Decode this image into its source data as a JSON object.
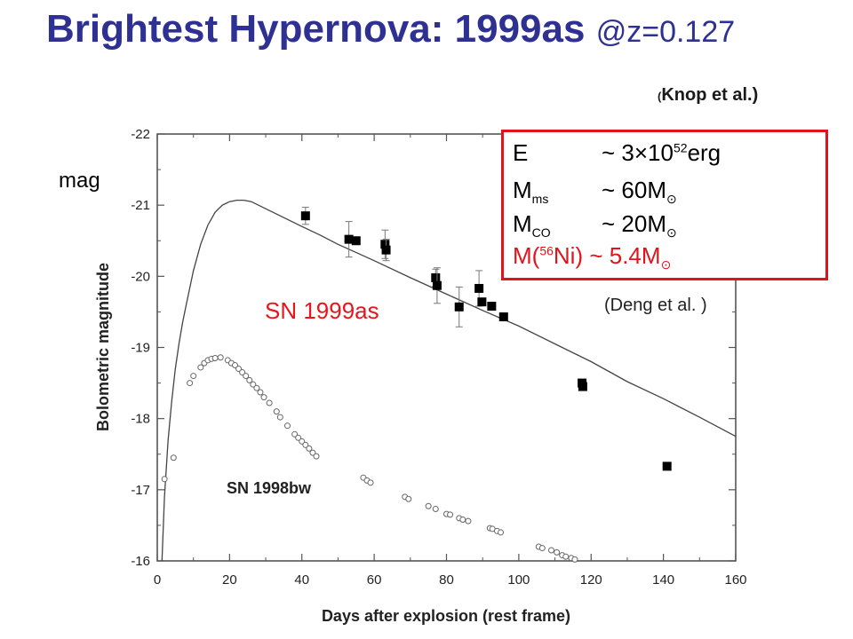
{
  "slide": {
    "title_main": "Brightest Hypernova: 1999as",
    "title_z": "@z=0.127",
    "credit": "Knop et al.)",
    "credit_paren": "(",
    "mag_label": "mag",
    "sn1999as_label": "SN 1999as",
    "sn1998bw_label": "SN 1998bw",
    "deng_credit": "(Deng et al. )",
    "params": {
      "E_lhs": "E",
      "E_val": "~ 3×10",
      "E_exp": "52",
      "E_unit": "erg",
      "M_lhs": "M",
      "Mms_sub": "ms",
      "Mms_val": "~ 60M",
      "Mco_sub": "CO",
      "Mco_val": "~ 20M",
      "Ni_pre": "M(",
      "Ni_sup": "56",
      "Ni_post": "Ni) ~ 5.4M",
      "sun": "⊙"
    },
    "colors": {
      "title": "#2e3192",
      "red": "#e0151b"
    }
  },
  "chart_data": {
    "type": "scatter",
    "xlabel": "Days after explosion (rest frame)",
    "ylabel": "Bolometric magnitude",
    "xlim": [
      0,
      160
    ],
    "ylim": [
      -16,
      -22
    ],
    "x_ticks": [
      "0",
      "20",
      "40",
      "60",
      "80",
      "100",
      "120",
      "140",
      "160"
    ],
    "y_ticks": [
      "-16",
      "-17",
      "-18",
      "-19",
      "-20",
      "-21",
      "-22"
    ],
    "series": [
      {
        "name": "SN 1999as",
        "style": "filled-square-with-errorbars",
        "points": [
          {
            "x": 41,
            "y": -20.85,
            "err": 0.12
          },
          {
            "x": 53,
            "y": -20.52,
            "err": 0.25
          },
          {
            "x": 55,
            "y": -20.5,
            "err": 0.0
          },
          {
            "x": 63,
            "y": -20.45,
            "err": 0.2
          },
          {
            "x": 63.3,
            "y": -20.37,
            "err": 0.15
          },
          {
            "x": 77,
            "y": -19.98,
            "err": 0.12
          },
          {
            "x": 77.4,
            "y": -19.87,
            "err": 0.25
          },
          {
            "x": 83.5,
            "y": -19.57,
            "err": 0.28
          },
          {
            "x": 89,
            "y": -19.83,
            "err": 0.25
          },
          {
            "x": 89.8,
            "y": -19.64,
            "err": 0.0
          },
          {
            "x": 92.5,
            "y": -19.58,
            "err": 0.0
          },
          {
            "x": 95.8,
            "y": -19.43,
            "err": 0.0
          },
          {
            "x": 117.5,
            "y": -18.5,
            "err": 0.0
          },
          {
            "x": 117.7,
            "y": -18.45,
            "err": 0.0
          },
          {
            "x": 141,
            "y": -17.33,
            "err": 0.0
          }
        ]
      },
      {
        "name": "SN 1998bw",
        "style": "open-circle",
        "points": [
          {
            "x": 2,
            "y": -17.15
          },
          {
            "x": 4.5,
            "y": -17.45
          },
          {
            "x": 9,
            "y": -18.5
          },
          {
            "x": 10,
            "y": -18.6
          },
          {
            "x": 12,
            "y": -18.72
          },
          {
            "x": 13,
            "y": -18.78
          },
          {
            "x": 14,
            "y": -18.82
          },
          {
            "x": 15,
            "y": -18.84
          },
          {
            "x": 16,
            "y": -18.85
          },
          {
            "x": 17.5,
            "y": -18.86
          },
          {
            "x": 19.5,
            "y": -18.82
          },
          {
            "x": 20.5,
            "y": -18.78
          },
          {
            "x": 21.5,
            "y": -18.75
          },
          {
            "x": 22.5,
            "y": -18.7
          },
          {
            "x": 23.5,
            "y": -18.65
          },
          {
            "x": 24.5,
            "y": -18.6
          },
          {
            "x": 25.5,
            "y": -18.54
          },
          {
            "x": 26.5,
            "y": -18.48
          },
          {
            "x": 27.5,
            "y": -18.43
          },
          {
            "x": 28.5,
            "y": -18.37
          },
          {
            "x": 29.5,
            "y": -18.3
          },
          {
            "x": 31,
            "y": -18.22
          },
          {
            "x": 33,
            "y": -18.1
          },
          {
            "x": 34,
            "y": -18.02
          },
          {
            "x": 36,
            "y": -17.9
          },
          {
            "x": 38,
            "y": -17.78
          },
          {
            "x": 39,
            "y": -17.73
          },
          {
            "x": 40,
            "y": -17.68
          },
          {
            "x": 41,
            "y": -17.63
          },
          {
            "x": 42,
            "y": -17.58
          },
          {
            "x": 43,
            "y": -17.52
          },
          {
            "x": 44,
            "y": -17.47
          },
          {
            "x": 57,
            "y": -17.17
          },
          {
            "x": 58,
            "y": -17.13
          },
          {
            "x": 59,
            "y": -17.1
          },
          {
            "x": 68.5,
            "y": -16.9
          },
          {
            "x": 69.5,
            "y": -16.87
          },
          {
            "x": 75,
            "y": -16.77
          },
          {
            "x": 77,
            "y": -16.73
          },
          {
            "x": 80,
            "y": -16.66
          },
          {
            "x": 81,
            "y": -16.65
          },
          {
            "x": 83.5,
            "y": -16.6
          },
          {
            "x": 84.5,
            "y": -16.58
          },
          {
            "x": 86,
            "y": -16.56
          },
          {
            "x": 92,
            "y": -16.46
          },
          {
            "x": 92.7,
            "y": -16.45
          },
          {
            "x": 94,
            "y": -16.42
          },
          {
            "x": 95,
            "y": -16.4
          },
          {
            "x": 105.5,
            "y": -16.2
          },
          {
            "x": 106.5,
            "y": -16.18
          },
          {
            "x": 109,
            "y": -16.15
          },
          {
            "x": 110.5,
            "y": -16.12
          },
          {
            "x": 112,
            "y": -16.08
          },
          {
            "x": 113,
            "y": -16.06
          },
          {
            "x": 114.5,
            "y": -16.04
          },
          {
            "x": 115.5,
            "y": -16.02
          }
        ]
      },
      {
        "name": "model",
        "style": "line",
        "points": [
          {
            "x": 1.3,
            "y": -16.0
          },
          {
            "x": 2,
            "y": -16.9
          },
          {
            "x": 3,
            "y": -17.7
          },
          {
            "x": 4,
            "y": -18.25
          },
          {
            "x": 5,
            "y": -18.7
          },
          {
            "x": 6,
            "y": -19.05
          },
          {
            "x": 7,
            "y": -19.35
          },
          {
            "x": 8,
            "y": -19.6
          },
          {
            "x": 10,
            "y": -20.08
          },
          {
            "x": 12,
            "y": -20.45
          },
          {
            "x": 14,
            "y": -20.72
          },
          {
            "x": 16,
            "y": -20.9
          },
          {
            "x": 18,
            "y": -21.0
          },
          {
            "x": 20,
            "y": -21.05
          },
          {
            "x": 22,
            "y": -21.07
          },
          {
            "x": 24,
            "y": -21.07
          },
          {
            "x": 26,
            "y": -21.05
          },
          {
            "x": 28,
            "y": -21.0
          },
          {
            "x": 32,
            "y": -20.9
          },
          {
            "x": 36,
            "y": -20.8
          },
          {
            "x": 40,
            "y": -20.7
          },
          {
            "x": 45,
            "y": -20.58
          },
          {
            "x": 50,
            "y": -20.45
          },
          {
            "x": 60,
            "y": -20.22
          },
          {
            "x": 70,
            "y": -19.98
          },
          {
            "x": 80,
            "y": -19.75
          },
          {
            "x": 90,
            "y": -19.52
          },
          {
            "x": 100,
            "y": -19.3
          },
          {
            "x": 110,
            "y": -19.05
          },
          {
            "x": 120,
            "y": -18.8
          },
          {
            "x": 130,
            "y": -18.52
          },
          {
            "x": 140,
            "y": -18.28
          },
          {
            "x": 150,
            "y": -18.02
          },
          {
            "x": 160,
            "y": -17.75
          }
        ]
      }
    ],
    "grid": false,
    "legend": "none"
  }
}
